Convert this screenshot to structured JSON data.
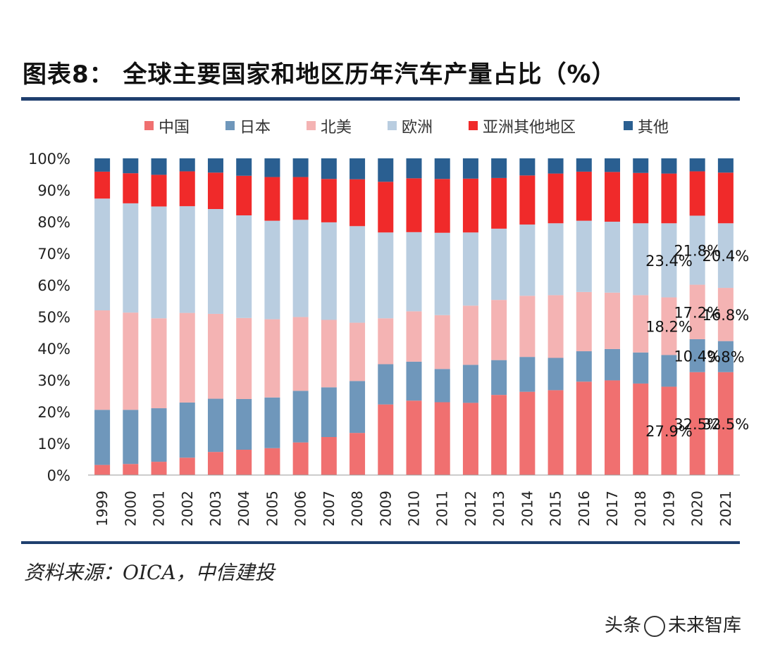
{
  "title": "图表8：  全球主要国家和地区历年汽车产量占比（%）",
  "source": "资料来源：OICA，中信建投",
  "watermark": {
    "prefix": "头条",
    "name": "未来智库"
  },
  "chart_data": {
    "type": "bar",
    "stacked": true,
    "title": "全球主要国家和地区历年汽车产量占比（%）",
    "xlabel": "",
    "ylabel": "",
    "ylim": [
      0,
      100
    ],
    "yticks": [
      "0%",
      "10%",
      "20%",
      "30%",
      "40%",
      "50%",
      "60%",
      "70%",
      "80%",
      "90%",
      "100%"
    ],
    "legend_position": "top",
    "categories": [
      "1999",
      "2000",
      "2001",
      "2002",
      "2003",
      "2004",
      "2005",
      "2006",
      "2007",
      "2008",
      "2009",
      "2010",
      "2011",
      "2012",
      "2013",
      "2014",
      "2015",
      "2016",
      "2017",
      "2018",
      "2019",
      "2020",
      "2021"
    ],
    "series": [
      {
        "name": "中国",
        "color": "#f07070",
        "values": [
          3.2,
          3.5,
          4.2,
          5.5,
          7.3,
          8.0,
          8.5,
          10.3,
          12.0,
          13.3,
          22.3,
          23.5,
          23.0,
          22.8,
          25.3,
          26.3,
          26.8,
          29.5,
          29.9,
          28.9,
          27.9,
          32.5,
          32.5
        ]
      },
      {
        "name": "日本",
        "color": "#6f97bb",
        "values": [
          17.4,
          17.1,
          16.9,
          17.4,
          16.8,
          16.0,
          16.0,
          16.3,
          15.7,
          16.4,
          12.7,
          12.3,
          10.5,
          12.0,
          11.0,
          11.0,
          10.2,
          9.6,
          9.9,
          9.8,
          10.0,
          10.4,
          9.8
        ]
      },
      {
        "name": "北美",
        "color": "#f4b3b3",
        "values": [
          31.4,
          30.7,
          28.4,
          28.3,
          26.8,
          25.6,
          24.7,
          23.3,
          21.3,
          18.4,
          14.5,
          15.9,
          17.0,
          18.7,
          19.0,
          19.3,
          19.8,
          18.7,
          17.8,
          18.1,
          18.2,
          17.2,
          16.8
        ]
      },
      {
        "name": "欧洲",
        "color": "#b9cde0",
        "values": [
          35.3,
          34.5,
          35.3,
          33.7,
          33.1,
          32.4,
          31.1,
          30.7,
          30.8,
          30.5,
          27.1,
          25.0,
          26.0,
          23.1,
          22.5,
          22.5,
          22.7,
          22.5,
          22.4,
          22.7,
          23.4,
          21.8,
          20.4
        ]
      },
      {
        "name": "亚洲其他地区",
        "color": "#f02a2a",
        "values": [
          8.5,
          9.5,
          10.0,
          11.0,
          11.5,
          12.5,
          13.8,
          13.5,
          13.7,
          14.8,
          16.0,
          17.0,
          17.0,
          17.0,
          16.0,
          15.5,
          15.7,
          15.5,
          15.7,
          15.9,
          15.7,
          14.0,
          16.0
        ]
      },
      {
        "name": "其他",
        "color": "#2a5f91",
        "values": [
          4.2,
          4.7,
          5.2,
          4.1,
          4.5,
          5.5,
          5.9,
          5.9,
          6.5,
          6.6,
          7.4,
          6.3,
          6.5,
          6.4,
          6.2,
          5.4,
          4.8,
          4.2,
          4.3,
          4.6,
          4.8,
          4.1,
          4.5
        ]
      }
    ],
    "annotations": [
      {
        "text": "23.4%",
        "category": "2019",
        "series": "欧洲"
      },
      {
        "text": "21.8%",
        "category": "2020",
        "series": "欧洲"
      },
      {
        "text": "20.4%",
        "category": "2021",
        "series": "欧洲"
      },
      {
        "text": "18.2%",
        "category": "2019",
        "series": "北美"
      },
      {
        "text": "17.2%",
        "category": "2020",
        "series": "北美"
      },
      {
        "text": "16.8%",
        "category": "2021",
        "series": "北美"
      },
      {
        "text": "10.4%",
        "category": "2020",
        "series": "日本"
      },
      {
        "text": "9.8%",
        "category": "2021",
        "series": "日本"
      },
      {
        "text": "27.9%",
        "category": "2019",
        "series": "中国"
      },
      {
        "text": "32.5%",
        "category": "2020",
        "series": "中国"
      },
      {
        "text": "32.5%",
        "category": "2021",
        "series": "中国"
      }
    ]
  }
}
